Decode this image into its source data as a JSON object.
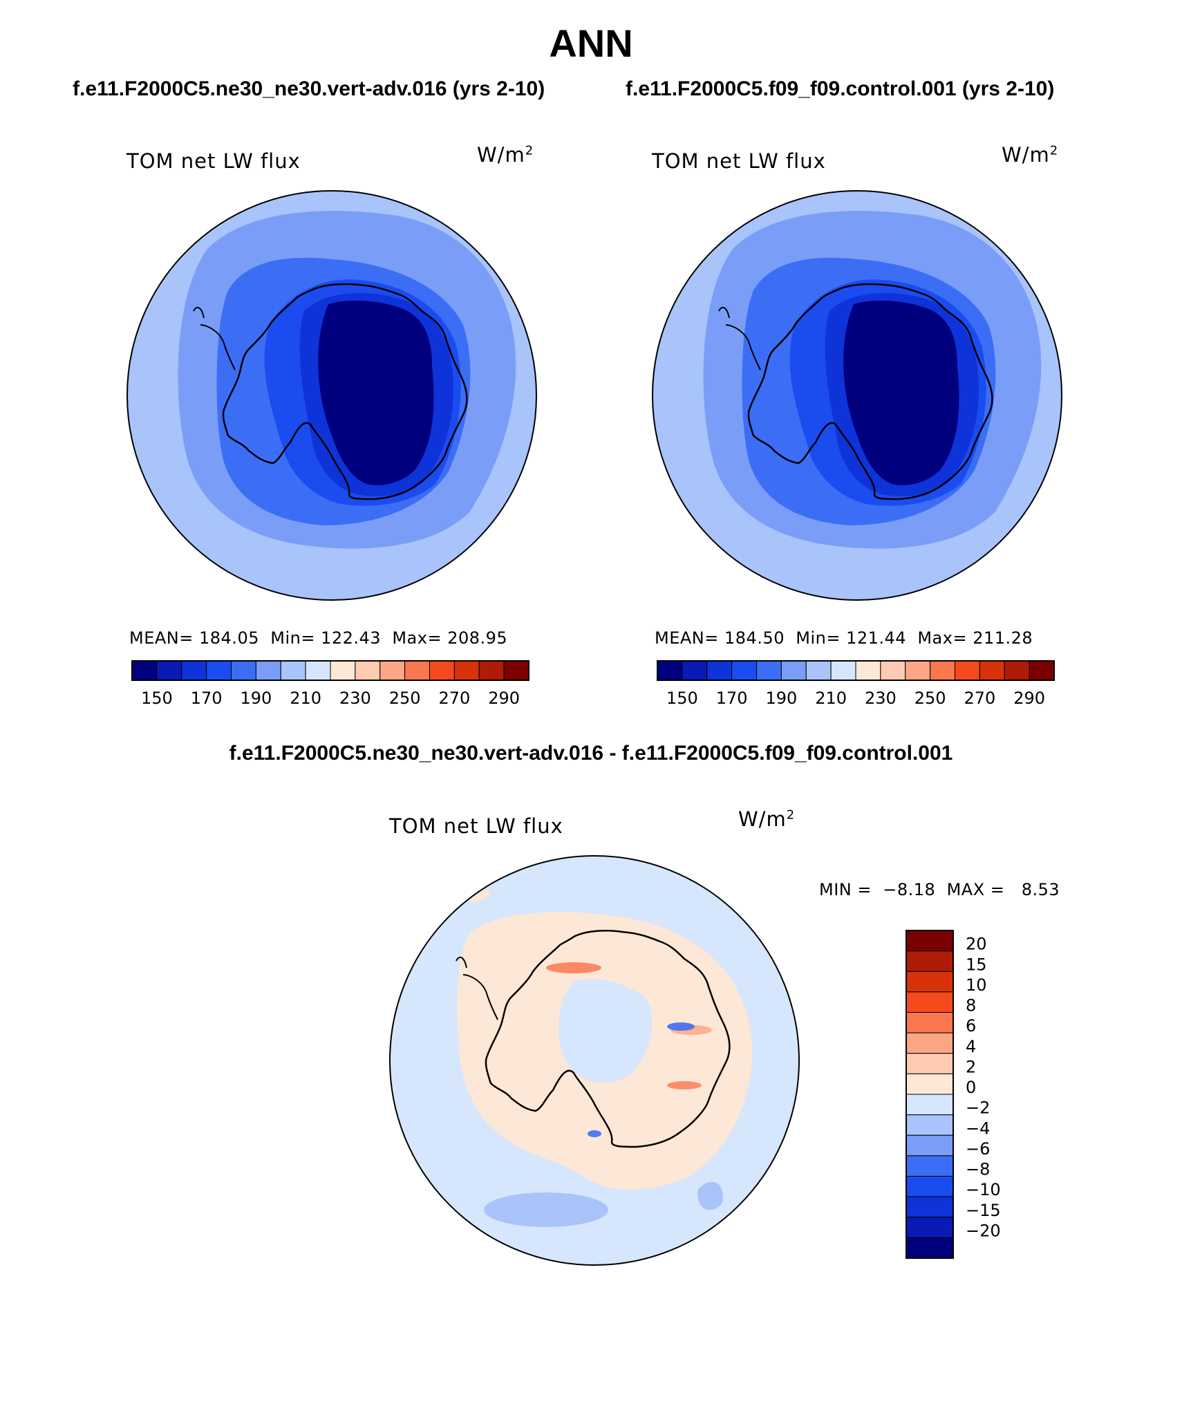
{
  "page": {
    "season": "ANN",
    "test_case": "f.e11.F2000C5.ne30_ne30.vert-adv.016 (yrs 2-10)",
    "control_case": "f.e11.F2000C5.f09_f09.control.001 (yrs 2-10)",
    "diff_title": "f.e11.F2000C5.ne30_ne30.vert-adv.016 - f.e11.F2000C5.f09_f09.control.001"
  },
  "panels": [
    {
      "variable": "TOM net LW flux",
      "units_base": "W/m",
      "units_exp": "2",
      "mean_label": "MEAN=",
      "mean": "184.05",
      "min_label": "Min=",
      "min": "122.43",
      "max_label": "Max=",
      "max": "208.95"
    },
    {
      "variable": "TOM net LW flux",
      "units_base": "W/m",
      "units_exp": "2",
      "mean_label": "MEAN=",
      "mean": "184.50",
      "min_label": "Min=",
      "min": "121.44",
      "max_label": "Max=",
      "max": "211.28"
    }
  ],
  "diff_panel": {
    "variable": "TOM net LW flux",
    "units_base": "W/m",
    "units_exp": "2",
    "min_label": "MIN =",
    "min": "−8.18",
    "max_label": "MAX =",
    "max": "8.53"
  },
  "colorbar": {
    "colors": [
      "#00007f",
      "#0a1ab4",
      "#0e33d8",
      "#1a4cf0",
      "#3c6ef5",
      "#7a9ef7",
      "#a9c3fb",
      "#d6e6fc",
      "#fde7d6",
      "#fccbb1",
      "#fba786",
      "#f9784f",
      "#f44a1e",
      "#d8320a",
      "#ae1c07",
      "#7c0000"
    ],
    "tick_labels": [
      "150",
      "170",
      "190",
      "210",
      "230",
      "250",
      "270",
      "290"
    ]
  },
  "diff_colorbar": {
    "colors_top_to_bottom": [
      "#7c0000",
      "#ae1c07",
      "#d8320a",
      "#f44a1e",
      "#f9784f",
      "#fba786",
      "#fccbb1",
      "#fde7d6",
      "#d6e6fc",
      "#a9c3fb",
      "#7a9ef7",
      "#3c6ef5",
      "#1a4cf0",
      "#0e33d8",
      "#0a1ab4",
      "#00007f"
    ],
    "tick_labels": [
      "20",
      "15",
      "10",
      "8",
      "6",
      "4",
      "2",
      "0",
      "−2",
      "−4",
      "−6",
      "−8",
      "−10",
      "−15",
      "−20"
    ]
  },
  "legend_colors": {
    "map_ocean_outer": "#a9c3fb",
    "map_ocean_mid": "#7a9ef7",
    "map_coast": "#3c6ef5",
    "map_shelf": "#1a4cf0",
    "map_slope": "#0e33d8",
    "map_interior": "#00007f",
    "diff_background": "#d6e6fc",
    "diff_positive": "#fde7d6",
    "diff_negative": "#a9c3fb",
    "coastline": "#000000"
  }
}
